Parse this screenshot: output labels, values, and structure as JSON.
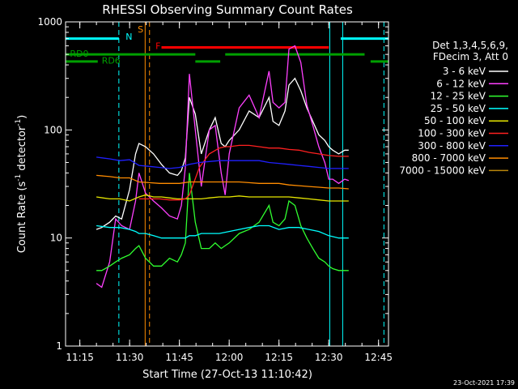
{
  "chart_data": {
    "type": "line",
    "title": "RHESSI Observing Summary Count Rates",
    "xlabel": "Start Time (27-Oct-13 11:10:42)",
    "ylabel_main": "Count Rate (s",
    "ylabel_exp": "-1",
    "ylabel_mid": " detector",
    "ylabel_exp2": "-1",
    "ylabel_end": ")",
    "y_scale": "log",
    "ylim": [
      1,
      1000
    ],
    "xlim": [
      "11:10:42",
      "12:48:00"
    ],
    "y_ticks": [
      {
        "v": 1,
        "label": "1"
      },
      {
        "v": 10,
        "label": "10"
      },
      {
        "v": 100,
        "label": "100"
      },
      {
        "v": 1000,
        "label": "1000"
      }
    ],
    "x_ticks": [
      {
        "t": 11.25,
        "label": "11:15"
      },
      {
        "t": 11.5,
        "label": "11:30"
      },
      {
        "t": 11.75,
        "label": "11:45"
      },
      {
        "t": 12.0,
        "label": "12:00"
      },
      {
        "t": 12.25,
        "label": "12:15"
      },
      {
        "t": 12.5,
        "label": "12:30"
      },
      {
        "t": 12.75,
        "label": "12:45"
      }
    ],
    "legend_header": [
      "Det 1,3,4,5,6,9,",
      "FDecim 3, Att 0"
    ],
    "series": [
      {
        "name": "3 - 6 keV",
        "color": "#ffffff",
        "x": [
          11.333,
          11.36,
          11.4,
          11.43,
          11.46,
          11.5,
          11.53,
          11.547,
          11.58,
          11.62,
          11.66,
          11.7,
          11.74,
          11.76,
          11.78,
          11.8,
          11.83,
          11.86,
          11.9,
          11.93,
          11.96,
          11.98,
          12.0,
          12.05,
          12.1,
          12.15,
          12.2,
          12.22,
          12.25,
          12.28,
          12.3,
          12.33,
          12.36,
          12.39,
          12.42,
          12.45,
          12.48,
          12.5,
          12.52,
          12.55,
          12.58,
          12.6
        ],
        "y": [
          12,
          12.5,
          14,
          16,
          15,
          28,
          60,
          75,
          70,
          60,
          48,
          40,
          38,
          42,
          55,
          200,
          140,
          60,
          100,
          130,
          75,
          70,
          80,
          100,
          150,
          130,
          200,
          120,
          110,
          150,
          260,
          300,
          230,
          160,
          120,
          90,
          80,
          70,
          65,
          60,
          65,
          65
        ]
      },
      {
        "name": "6 - 12 keV",
        "color": "#ff40ff",
        "x": [
          11.333,
          11.36,
          11.4,
          11.43,
          11.46,
          11.5,
          11.53,
          11.547,
          11.58,
          11.62,
          11.66,
          11.7,
          11.74,
          11.76,
          11.78,
          11.8,
          11.83,
          11.86,
          11.9,
          11.93,
          11.96,
          11.98,
          12.0,
          12.05,
          12.1,
          12.15,
          12.2,
          12.22,
          12.25,
          12.28,
          12.3,
          12.33,
          12.36,
          12.39,
          12.42,
          12.45,
          12.48,
          12.5,
          12.52,
          12.55,
          12.58,
          12.6
        ],
        "y": [
          3.8,
          3.5,
          6,
          15,
          13,
          12,
          22,
          40,
          26,
          22,
          19,
          16,
          15,
          20,
          45,
          330,
          100,
          30,
          100,
          110,
          40,
          25,
          60,
          160,
          210,
          130,
          350,
          180,
          160,
          180,
          560,
          600,
          420,
          170,
          110,
          70,
          50,
          35,
          35,
          32,
          35,
          34
        ]
      },
      {
        "name": "12 - 25 keV",
        "color": "#30ff30",
        "x": [
          11.333,
          11.36,
          11.4,
          11.43,
          11.46,
          11.5,
          11.53,
          11.547,
          11.58,
          11.62,
          11.66,
          11.7,
          11.74,
          11.76,
          11.78,
          11.8,
          11.83,
          11.86,
          11.9,
          11.93,
          11.96,
          11.98,
          12.0,
          12.05,
          12.1,
          12.15,
          12.2,
          12.22,
          12.25,
          12.28,
          12.3,
          12.33,
          12.36,
          12.39,
          12.42,
          12.45,
          12.48,
          12.5,
          12.52,
          12.55,
          12.58,
          12.6
        ],
        "y": [
          5,
          5,
          5.5,
          6,
          6.5,
          7,
          8,
          8.5,
          6.5,
          5.5,
          5.5,
          6.5,
          6,
          7,
          9,
          40,
          14,
          8,
          8,
          9,
          8,
          8.5,
          9,
          11,
          12,
          14,
          20,
          14,
          13,
          15,
          22,
          20,
          13,
          10,
          8,
          6.5,
          6,
          5.5,
          5.2,
          5,
          5,
          5
        ]
      },
      {
        "name": "25 - 50 keV",
        "color": "#00ffff",
        "x": [
          11.333,
          11.4,
          11.45,
          11.5,
          11.53,
          11.547,
          11.58,
          11.62,
          11.66,
          11.7,
          11.74,
          11.78,
          11.8,
          11.83,
          11.86,
          11.9,
          11.95,
          12.0,
          12.05,
          12.1,
          12.15,
          12.2,
          12.25,
          12.3,
          12.35,
          12.4,
          12.45,
          12.5,
          12.55,
          12.6
        ],
        "y": [
          13,
          12.5,
          12.5,
          12,
          11.5,
          11,
          11,
          10.5,
          10,
          10,
          10,
          10,
          10.5,
          10.5,
          11,
          11,
          11,
          11.5,
          12,
          12.5,
          13,
          13,
          12,
          12.5,
          12.5,
          12,
          11.5,
          10.5,
          10,
          10
        ]
      },
      {
        "name": "50 - 100 keV",
        "color": "#e6e600",
        "x": [
          11.333,
          11.4,
          11.45,
          11.5,
          11.547,
          11.58,
          11.62,
          11.66,
          11.7,
          11.74,
          11.78,
          11.8,
          11.83,
          11.86,
          11.9,
          11.95,
          12.0,
          12.05,
          12.1,
          12.15,
          12.2,
          12.25,
          12.3,
          12.35,
          12.4,
          12.45,
          12.5,
          12.55,
          12.6
        ],
        "y": [
          24,
          23,
          23,
          22,
          24,
          25,
          24,
          24,
          23.5,
          23,
          23,
          23,
          23,
          23,
          23.5,
          24,
          24,
          24.5,
          24,
          24,
          24,
          24,
          24,
          23.5,
          23,
          22.5,
          22,
          22,
          22
        ]
      },
      {
        "name": "100 - 300 keV",
        "color": "#ff2020",
        "x": [
          11.547,
          11.6,
          11.65,
          11.7,
          11.75,
          11.78,
          11.8,
          11.85,
          11.9,
          11.95,
          11.98,
          12.0,
          12.05,
          12.1,
          12.15,
          12.2,
          12.25,
          12.3,
          12.35,
          12.4,
          12.45,
          12.5,
          12.55,
          12.6
        ],
        "y": [
          23,
          23,
          23,
          22.5,
          22.5,
          23,
          25,
          45,
          60,
          68,
          70,
          70,
          72,
          72,
          70,
          68,
          68,
          66,
          65,
          62,
          60,
          58,
          57,
          57
        ]
      },
      {
        "name": "300 - 800 keV",
        "color": "#2020ff",
        "x": [
          11.333,
          11.4,
          11.45,
          11.5,
          11.547,
          11.6,
          11.65,
          11.7,
          11.75,
          11.8,
          11.85,
          11.9,
          11.95,
          12.0,
          12.05,
          12.1,
          12.15,
          12.2,
          12.25,
          12.3,
          12.35,
          12.4,
          12.45,
          12.5,
          12.55,
          12.6
        ],
        "y": [
          56,
          54,
          52,
          53,
          47,
          46,
          45,
          44,
          45,
          48,
          50,
          51,
          52,
          52,
          52,
          52,
          52,
          50,
          49,
          48,
          47,
          46,
          45,
          44,
          44,
          44
        ]
      },
      {
        "name": "800 - 7000 keV",
        "color": "#ff8c00",
        "x": [
          11.333,
          11.4,
          11.45,
          11.5,
          11.547,
          11.6,
          11.65,
          11.7,
          11.75,
          11.8,
          11.85,
          11.9,
          11.95,
          12.0,
          12.05,
          12.1,
          12.15,
          12.2,
          12.25,
          12.3,
          12.35,
          12.4,
          12.45,
          12.5,
          12.55,
          12.6
        ],
        "y": [
          38,
          37,
          36,
          36,
          33,
          32.5,
          32,
          32,
          32,
          33,
          33,
          33,
          33,
          33,
          33,
          32.5,
          32,
          32,
          32,
          31,
          30.5,
          30,
          29.5,
          29,
          29,
          28.5
        ]
      },
      {
        "name": "7000 - 15000 keV",
        "color": "#b8860b",
        "x": [],
        "y": []
      }
    ],
    "segments": [
      {
        "label": "N",
        "color": "#00ffff",
        "t0": 11.178,
        "t1": 11.446,
        "y": 700,
        "label_t": 11.48,
        "label_y": 730
      },
      {
        "label": "",
        "color": "#00ffff",
        "t0": 12.56,
        "t1": 12.8,
        "y": 700,
        "label_t": null,
        "label_y": null
      },
      {
        "label": "RD0",
        "color": "#00a000",
        "t0": 11.178,
        "t1": 11.83,
        "y": 500,
        "label_t": 11.2,
        "label_y": 510
      },
      {
        "label": "",
        "color": "#00a000",
        "t0": 11.98,
        "t1": 12.68,
        "y": 500,
        "label_t": null,
        "label_y": null
      },
      {
        "label": "RD6",
        "color": "#00a000",
        "t0": 11.178,
        "t1": 11.34,
        "y": 430,
        "label_t": 11.36,
        "label_y": 440
      },
      {
        "label": "",
        "color": "#00a000",
        "t0": 11.83,
        "t1": 11.955,
        "y": 430,
        "label_t": null,
        "label_y": null
      },
      {
        "label": "",
        "color": "#00a000",
        "t0": 12.71,
        "t1": 12.8,
        "y": 430,
        "label_t": null,
        "label_y": null
      },
      {
        "label": "F",
        "color": "#ff0000",
        "t0": 11.66,
        "t1": 12.5,
        "y": 580,
        "label_t": 11.63,
        "label_y": 600
      }
    ],
    "vlines": [
      {
        "t": 11.446,
        "color": "#00ffff",
        "dashed": true
      },
      {
        "t": 11.578,
        "color": "#ff8c00",
        "dashed": false
      },
      {
        "t": 11.6,
        "color": "#ff8c00",
        "dashed": true
      },
      {
        "t": 12.505,
        "color": "#00ffff",
        "dashed": false
      },
      {
        "t": 12.57,
        "color": "#00ffff",
        "dashed": false
      },
      {
        "t": 12.777,
        "color": "#00ffff",
        "dashed": true
      }
    ],
    "s_marker": {
      "label": "S",
      "color": "#ff8c00",
      "t": 11.555,
      "y": 800
    },
    "footer_date": "23-Oct-2021 17:39"
  }
}
